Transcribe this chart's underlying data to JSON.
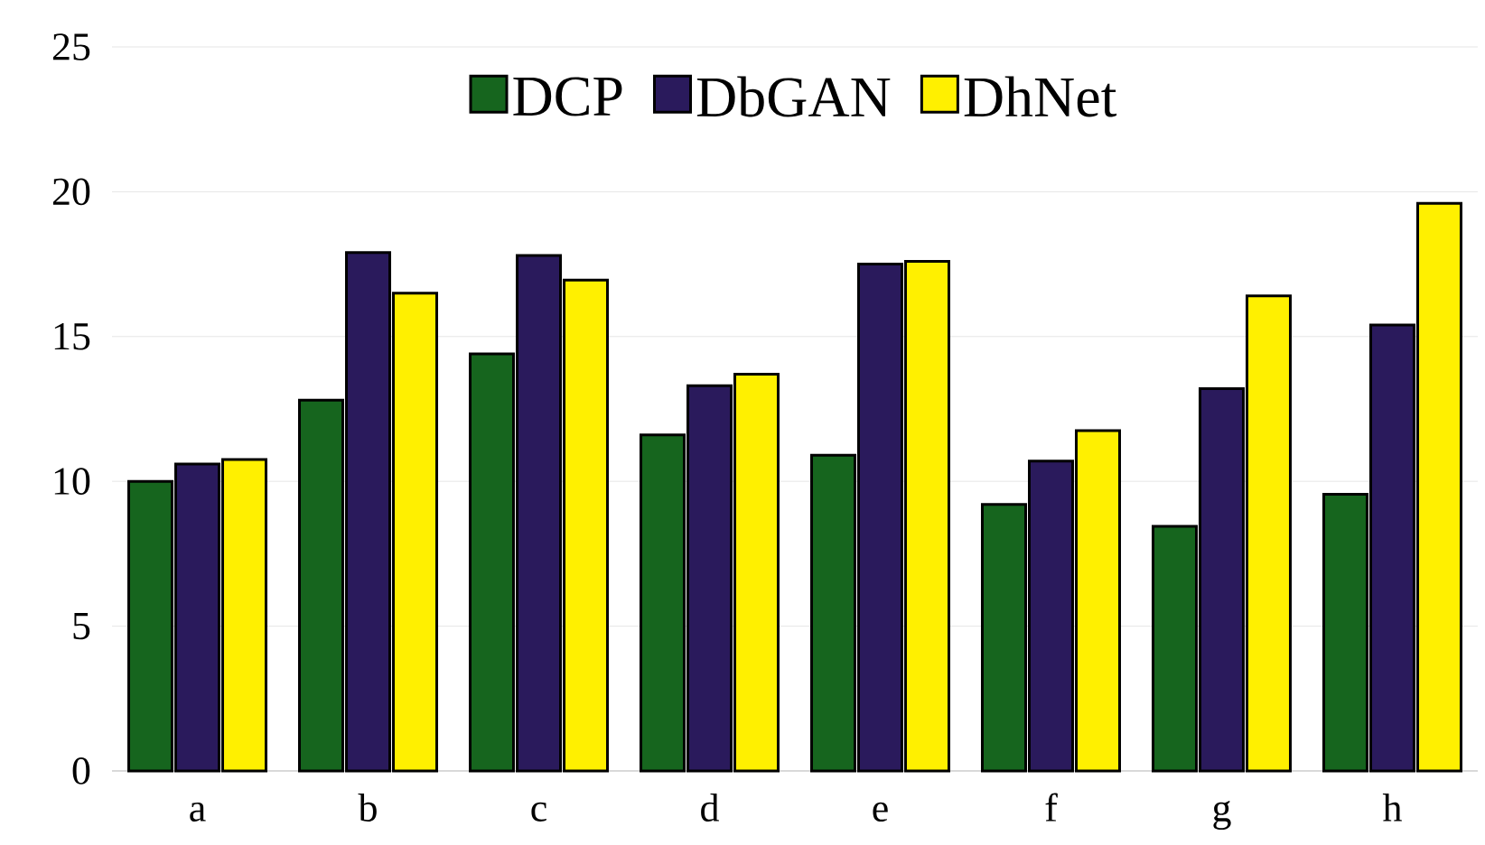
{
  "chart_data": {
    "type": "bar",
    "categories": [
      "a",
      "b",
      "c",
      "d",
      "e",
      "f",
      "g",
      "h"
    ],
    "series": [
      {
        "name": "DCP",
        "color": "#16651e",
        "values": [
          10.0,
          12.8,
          14.4,
          11.6,
          10.9,
          9.2,
          8.45,
          9.55
        ]
      },
      {
        "name": "DbGAN",
        "color": "#2a1a5c",
        "values": [
          10.6,
          17.9,
          17.8,
          13.3,
          17.5,
          10.7,
          13.2,
          15.4
        ]
      },
      {
        "name": "DhNet",
        "color": "#fff000",
        "values": [
          10.75,
          16.5,
          16.95,
          13.7,
          17.6,
          11.75,
          16.4,
          19.6
        ]
      }
    ],
    "ylim": [
      0,
      25
    ],
    "yticks": [
      0,
      5,
      10,
      15,
      20,
      25
    ],
    "grid": "y",
    "legend": "top"
  }
}
